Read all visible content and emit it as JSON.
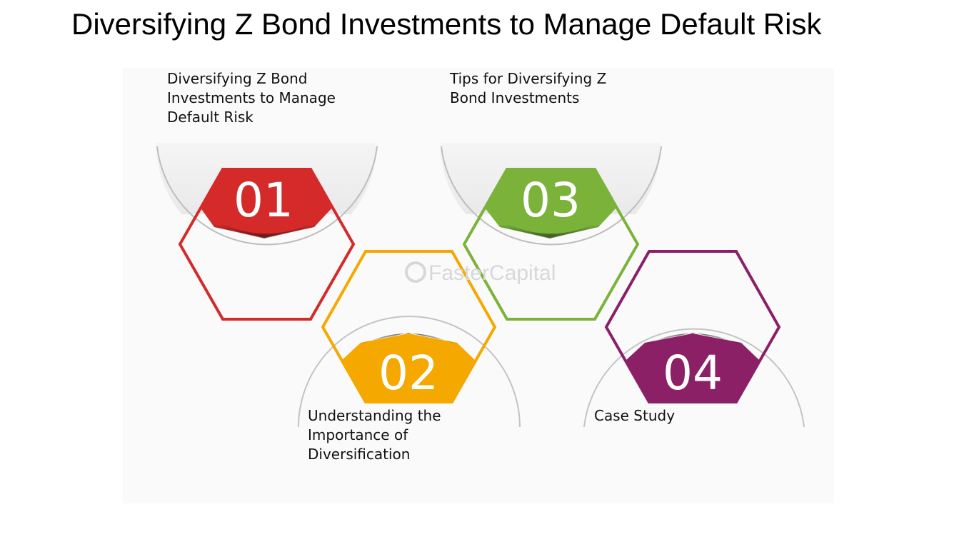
{
  "title": "Diversifying Z Bond Investments to Manage Default Risk",
  "watermark": "FasterCapital",
  "steps": [
    {
      "number": "01",
      "label": "Diversifying Z Bond Investments to Manage Default Risk",
      "color": "#d42a2a"
    },
    {
      "number": "02",
      "label": "Understanding the Importance of Diversification",
      "color": "#f5a800"
    },
    {
      "number": "03",
      "label": "Tips for Diversifying Z Bond Investments",
      "color": "#7bb33a"
    },
    {
      "number": "04",
      "label": "Case Study",
      "color": "#8c2066"
    }
  ]
}
